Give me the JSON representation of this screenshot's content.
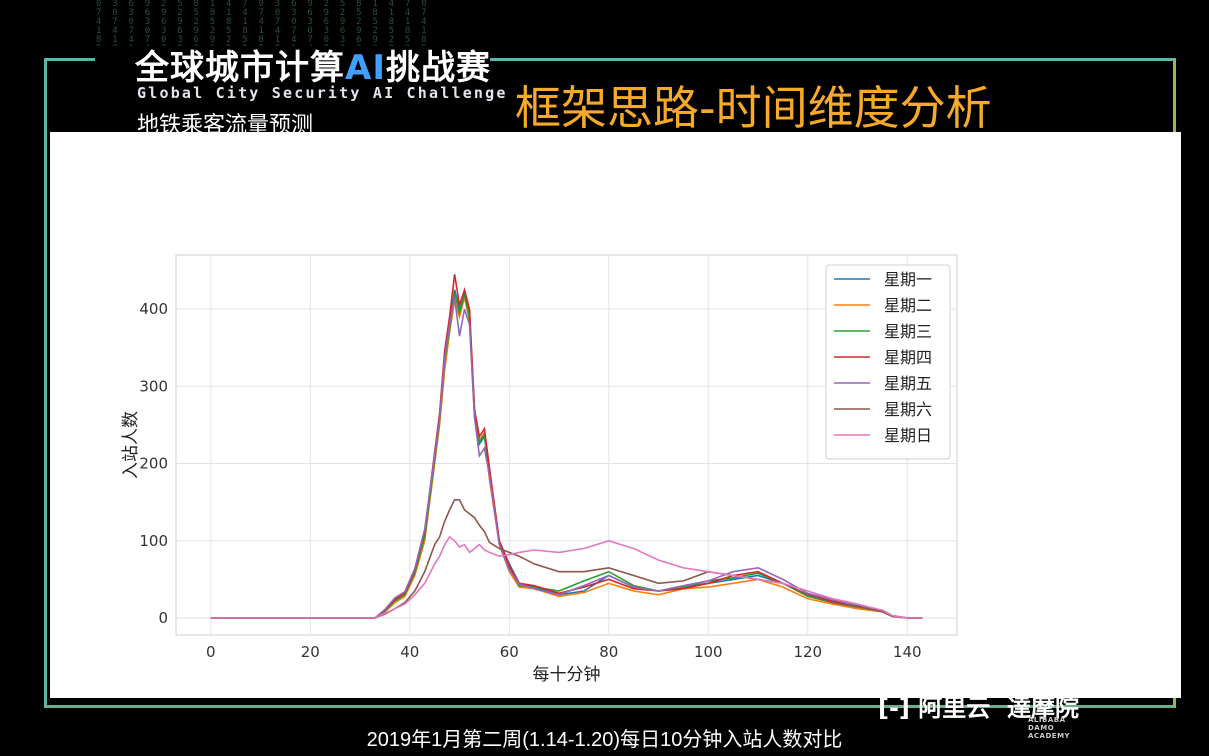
{
  "header": {
    "logo_title_a": "全球城市计算",
    "logo_title_ai": "AI",
    "logo_title_b": "挑战赛",
    "logo_subtitle": "Global City Security AI Challenge",
    "logo_subtitle2": "地铁乘客流量预测",
    "slide_title": "框架思路-时间维度分析"
  },
  "footer": {
    "brand_a": "[-] 阿里云",
    "brand_b": "達摩院",
    "brand_small": "ALIBABA DAMO ACADEMY",
    "caption": "2019年1月第二周(1.14-1.20)每日10分钟入站人数对比"
  },
  "colors": {
    "accent_title": "#f7a928",
    "frame": "#5fb3a8"
  },
  "chart_data": {
    "type": "line",
    "xlabel": "每十分钟",
    "ylabel": "入站人数",
    "xlim": [
      -7,
      150
    ],
    "ylim": [
      -22,
      470
    ],
    "xticks": [
      0,
      20,
      40,
      60,
      80,
      100,
      120,
      140
    ],
    "yticks": [
      0,
      100,
      200,
      300,
      400
    ],
    "grid": true,
    "legend_position": "top-right",
    "series": [
      {
        "name": "星期一",
        "color": "#1f77b4",
        "points": [
          [
            0,
            0
          ],
          [
            33,
            0
          ],
          [
            35,
            10
          ],
          [
            37,
            25
          ],
          [
            39,
            30
          ],
          [
            41,
            60
          ],
          [
            43,
            110
          ],
          [
            45,
            210
          ],
          [
            46,
            260
          ],
          [
            47,
            340
          ],
          [
            48,
            380
          ],
          [
            49,
            425
          ],
          [
            50,
            400
          ],
          [
            51,
            420
          ],
          [
            52,
            395
          ],
          [
            53,
            270
          ],
          [
            54,
            225
          ],
          [
            55,
            235
          ],
          [
            56,
            190
          ],
          [
            58,
            100
          ],
          [
            60,
            70
          ],
          [
            62,
            45
          ],
          [
            65,
            40
          ],
          [
            70,
            30
          ],
          [
            75,
            35
          ],
          [
            80,
            55
          ],
          [
            85,
            40
          ],
          [
            90,
            35
          ],
          [
            95,
            40
          ],
          [
            100,
            45
          ],
          [
            105,
            50
          ],
          [
            110,
            55
          ],
          [
            115,
            45
          ],
          [
            120,
            30
          ],
          [
            125,
            20
          ],
          [
            130,
            15
          ],
          [
            135,
            10
          ],
          [
            137,
            3
          ],
          [
            140,
            0
          ],
          [
            143,
            0
          ]
        ]
      },
      {
        "name": "星期二",
        "color": "#ff7f0e",
        "points": [
          [
            0,
            0
          ],
          [
            33,
            0
          ],
          [
            35,
            8
          ],
          [
            37,
            20
          ],
          [
            39,
            28
          ],
          [
            41,
            55
          ],
          [
            43,
            100
          ],
          [
            45,
            200
          ],
          [
            46,
            250
          ],
          [
            47,
            320
          ],
          [
            48,
            370
          ],
          [
            49,
            410
          ],
          [
            50,
            390
          ],
          [
            51,
            415
          ],
          [
            52,
            385
          ],
          [
            53,
            260
          ],
          [
            54,
            230
          ],
          [
            55,
            240
          ],
          [
            56,
            180
          ],
          [
            58,
            95
          ],
          [
            60,
            60
          ],
          [
            62,
            40
          ],
          [
            65,
            38
          ],
          [
            70,
            28
          ],
          [
            75,
            33
          ],
          [
            80,
            45
          ],
          [
            85,
            35
          ],
          [
            90,
            30
          ],
          [
            95,
            38
          ],
          [
            100,
            40
          ],
          [
            105,
            45
          ],
          [
            110,
            50
          ],
          [
            115,
            40
          ],
          [
            120,
            25
          ],
          [
            125,
            18
          ],
          [
            130,
            12
          ],
          [
            135,
            8
          ],
          [
            137,
            2
          ],
          [
            140,
            0
          ],
          [
            143,
            0
          ]
        ]
      },
      {
        "name": "星期三",
        "color": "#2ca02c",
        "points": [
          [
            0,
            0
          ],
          [
            33,
            0
          ],
          [
            35,
            9
          ],
          [
            37,
            22
          ],
          [
            39,
            30
          ],
          [
            41,
            58
          ],
          [
            43,
            105
          ],
          [
            45,
            205
          ],
          [
            46,
            255
          ],
          [
            47,
            330
          ],
          [
            48,
            375
          ],
          [
            49,
            420
          ],
          [
            50,
            395
          ],
          [
            51,
            418
          ],
          [
            52,
            390
          ],
          [
            53,
            265
          ],
          [
            54,
            228
          ],
          [
            55,
            238
          ],
          [
            56,
            185
          ],
          [
            58,
            98
          ],
          [
            60,
            65
          ],
          [
            62,
            42
          ],
          [
            65,
            40
          ],
          [
            70,
            35
          ],
          [
            75,
            48
          ],
          [
            80,
            60
          ],
          [
            85,
            42
          ],
          [
            90,
            35
          ],
          [
            95,
            40
          ],
          [
            100,
            48
          ],
          [
            105,
            52
          ],
          [
            110,
            58
          ],
          [
            115,
            45
          ],
          [
            120,
            28
          ],
          [
            125,
            20
          ],
          [
            130,
            14
          ],
          [
            135,
            9
          ],
          [
            137,
            3
          ],
          [
            140,
            0
          ],
          [
            143,
            0
          ]
        ]
      },
      {
        "name": "星期四",
        "color": "#d62728",
        "points": [
          [
            0,
            0
          ],
          [
            33,
            0
          ],
          [
            35,
            10
          ],
          [
            37,
            24
          ],
          [
            39,
            32
          ],
          [
            41,
            62
          ],
          [
            43,
            112
          ],
          [
            45,
            215
          ],
          [
            46,
            265
          ],
          [
            47,
            345
          ],
          [
            48,
            390
          ],
          [
            49,
            445
          ],
          [
            50,
            405
          ],
          [
            51,
            425
          ],
          [
            52,
            400
          ],
          [
            53,
            270
          ],
          [
            54,
            235
          ],
          [
            55,
            245
          ],
          [
            56,
            195
          ],
          [
            58,
            100
          ],
          [
            60,
            68
          ],
          [
            62,
            45
          ],
          [
            65,
            42
          ],
          [
            70,
            32
          ],
          [
            75,
            40
          ],
          [
            80,
            50
          ],
          [
            85,
            38
          ],
          [
            90,
            35
          ],
          [
            95,
            38
          ],
          [
            100,
            45
          ],
          [
            105,
            55
          ],
          [
            110,
            60
          ],
          [
            115,
            45
          ],
          [
            120,
            30
          ],
          [
            125,
            22
          ],
          [
            130,
            15
          ],
          [
            135,
            10
          ],
          [
            137,
            3
          ],
          [
            140,
            0
          ],
          [
            143,
            0
          ]
        ]
      },
      {
        "name": "星期五",
        "color": "#9467bd",
        "points": [
          [
            0,
            0
          ],
          [
            33,
            0
          ],
          [
            35,
            11
          ],
          [
            37,
            26
          ],
          [
            39,
            34
          ],
          [
            41,
            64
          ],
          [
            43,
            115
          ],
          [
            45,
            210
          ],
          [
            46,
            258
          ],
          [
            47,
            335
          ],
          [
            48,
            380
          ],
          [
            49,
            415
          ],
          [
            50,
            365
          ],
          [
            51,
            400
          ],
          [
            52,
            380
          ],
          [
            53,
            260
          ],
          [
            54,
            210
          ],
          [
            55,
            220
          ],
          [
            56,
            185
          ],
          [
            58,
            95
          ],
          [
            60,
            62
          ],
          [
            62,
            44
          ],
          [
            65,
            38
          ],
          [
            70,
            30
          ],
          [
            75,
            42
          ],
          [
            80,
            55
          ],
          [
            85,
            40
          ],
          [
            90,
            35
          ],
          [
            95,
            42
          ],
          [
            100,
            48
          ],
          [
            105,
            60
          ],
          [
            110,
            65
          ],
          [
            115,
            50
          ],
          [
            120,
            32
          ],
          [
            125,
            24
          ],
          [
            130,
            16
          ],
          [
            135,
            10
          ],
          [
            137,
            3
          ],
          [
            140,
            0
          ],
          [
            143,
            0
          ]
        ]
      },
      {
        "name": "星期六",
        "color": "#8c564b",
        "points": [
          [
            0,
            0
          ],
          [
            33,
            0
          ],
          [
            35,
            5
          ],
          [
            37,
            12
          ],
          [
            39,
            20
          ],
          [
            41,
            35
          ],
          [
            43,
            60
          ],
          [
            45,
            95
          ],
          [
            46,
            105
          ],
          [
            47,
            125
          ],
          [
            48,
            140
          ],
          [
            49,
            153
          ],
          [
            50,
            153
          ],
          [
            51,
            140
          ],
          [
            52,
            135
          ],
          [
            53,
            130
          ],
          [
            54,
            120
          ],
          [
            55,
            112
          ],
          [
            56,
            98
          ],
          [
            58,
            90
          ],
          [
            60,
            85
          ],
          [
            62,
            80
          ],
          [
            65,
            70
          ],
          [
            70,
            60
          ],
          [
            75,
            60
          ],
          [
            80,
            65
          ],
          [
            85,
            55
          ],
          [
            90,
            45
          ],
          [
            95,
            48
          ],
          [
            100,
            60
          ],
          [
            105,
            55
          ],
          [
            110,
            50
          ],
          [
            115,
            45
          ],
          [
            120,
            30
          ],
          [
            125,
            20
          ],
          [
            130,
            15
          ],
          [
            135,
            8
          ],
          [
            137,
            2
          ],
          [
            140,
            0
          ],
          [
            143,
            0
          ]
        ]
      },
      {
        "name": "星期日",
        "color": "#e377c2",
        "points": [
          [
            0,
            0
          ],
          [
            33,
            0
          ],
          [
            35,
            6
          ],
          [
            37,
            12
          ],
          [
            39,
            18
          ],
          [
            41,
            30
          ],
          [
            43,
            45
          ],
          [
            45,
            70
          ],
          [
            46,
            80
          ],
          [
            47,
            95
          ],
          [
            48,
            105
          ],
          [
            49,
            100
          ],
          [
            50,
            92
          ],
          [
            51,
            95
          ],
          [
            52,
            85
          ],
          [
            53,
            90
          ],
          [
            54,
            95
          ],
          [
            55,
            88
          ],
          [
            56,
            85
          ],
          [
            58,
            80
          ],
          [
            60,
            82
          ],
          [
            62,
            85
          ],
          [
            65,
            88
          ],
          [
            70,
            85
          ],
          [
            75,
            90
          ],
          [
            80,
            100
          ],
          [
            85,
            90
          ],
          [
            90,
            75
          ],
          [
            95,
            65
          ],
          [
            100,
            60
          ],
          [
            105,
            55
          ],
          [
            110,
            50
          ],
          [
            115,
            45
          ],
          [
            120,
            35
          ],
          [
            125,
            25
          ],
          [
            130,
            18
          ],
          [
            135,
            10
          ],
          [
            137,
            3
          ],
          [
            140,
            0
          ],
          [
            143,
            0
          ]
        ]
      }
    ]
  }
}
